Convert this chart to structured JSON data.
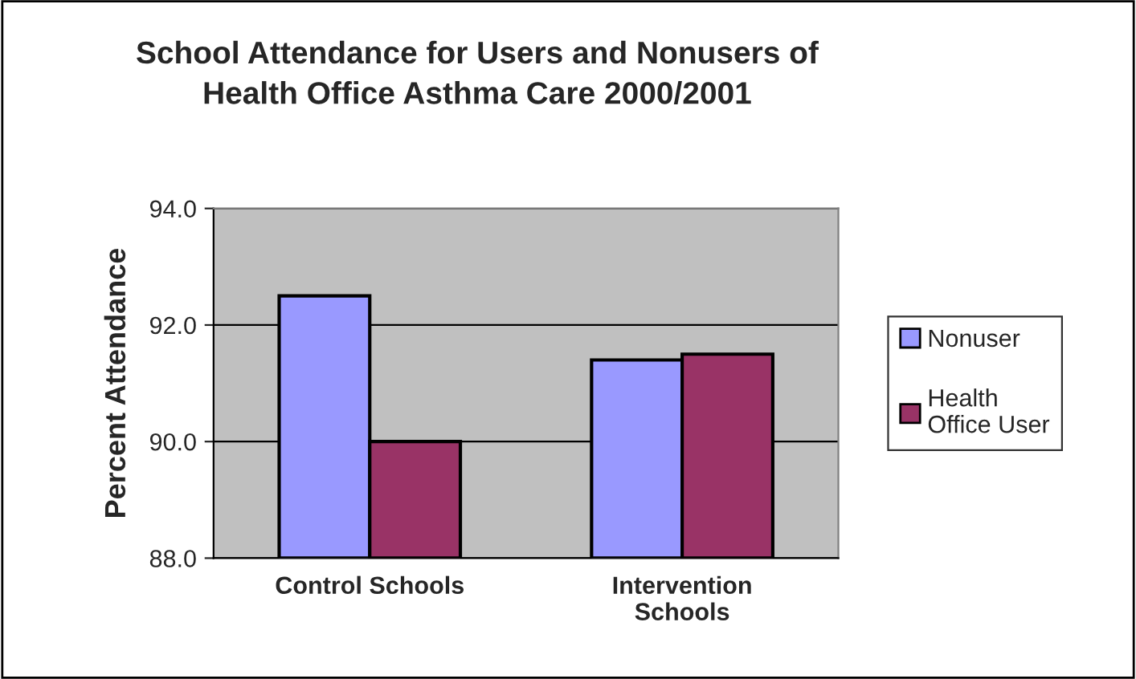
{
  "chart_data": {
    "type": "bar",
    "title": "School Attendance for Users and Nonusers of\nHealth Office Asthma Care 2000/2001",
    "ylabel": "Percent Attendance",
    "categories": [
      "Control Schools",
      "Intervention\nSchools"
    ],
    "series": [
      {
        "name": "Nonuser",
        "color": "#9999ff",
        "values": [
          92.5,
          91.4
        ]
      },
      {
        "name": "Health\nOffice User",
        "color": "#993366",
        "values": [
          90.0,
          91.5
        ]
      }
    ],
    "ylim": [
      88,
      94
    ],
    "yticks": [
      {
        "value": 88,
        "label": "88.0"
      },
      {
        "value": 90,
        "label": "90.0"
      },
      {
        "value": 92,
        "label": "92.0"
      },
      {
        "value": 94,
        "label": "94.0"
      }
    ],
    "grid": "y",
    "legend": "right"
  }
}
